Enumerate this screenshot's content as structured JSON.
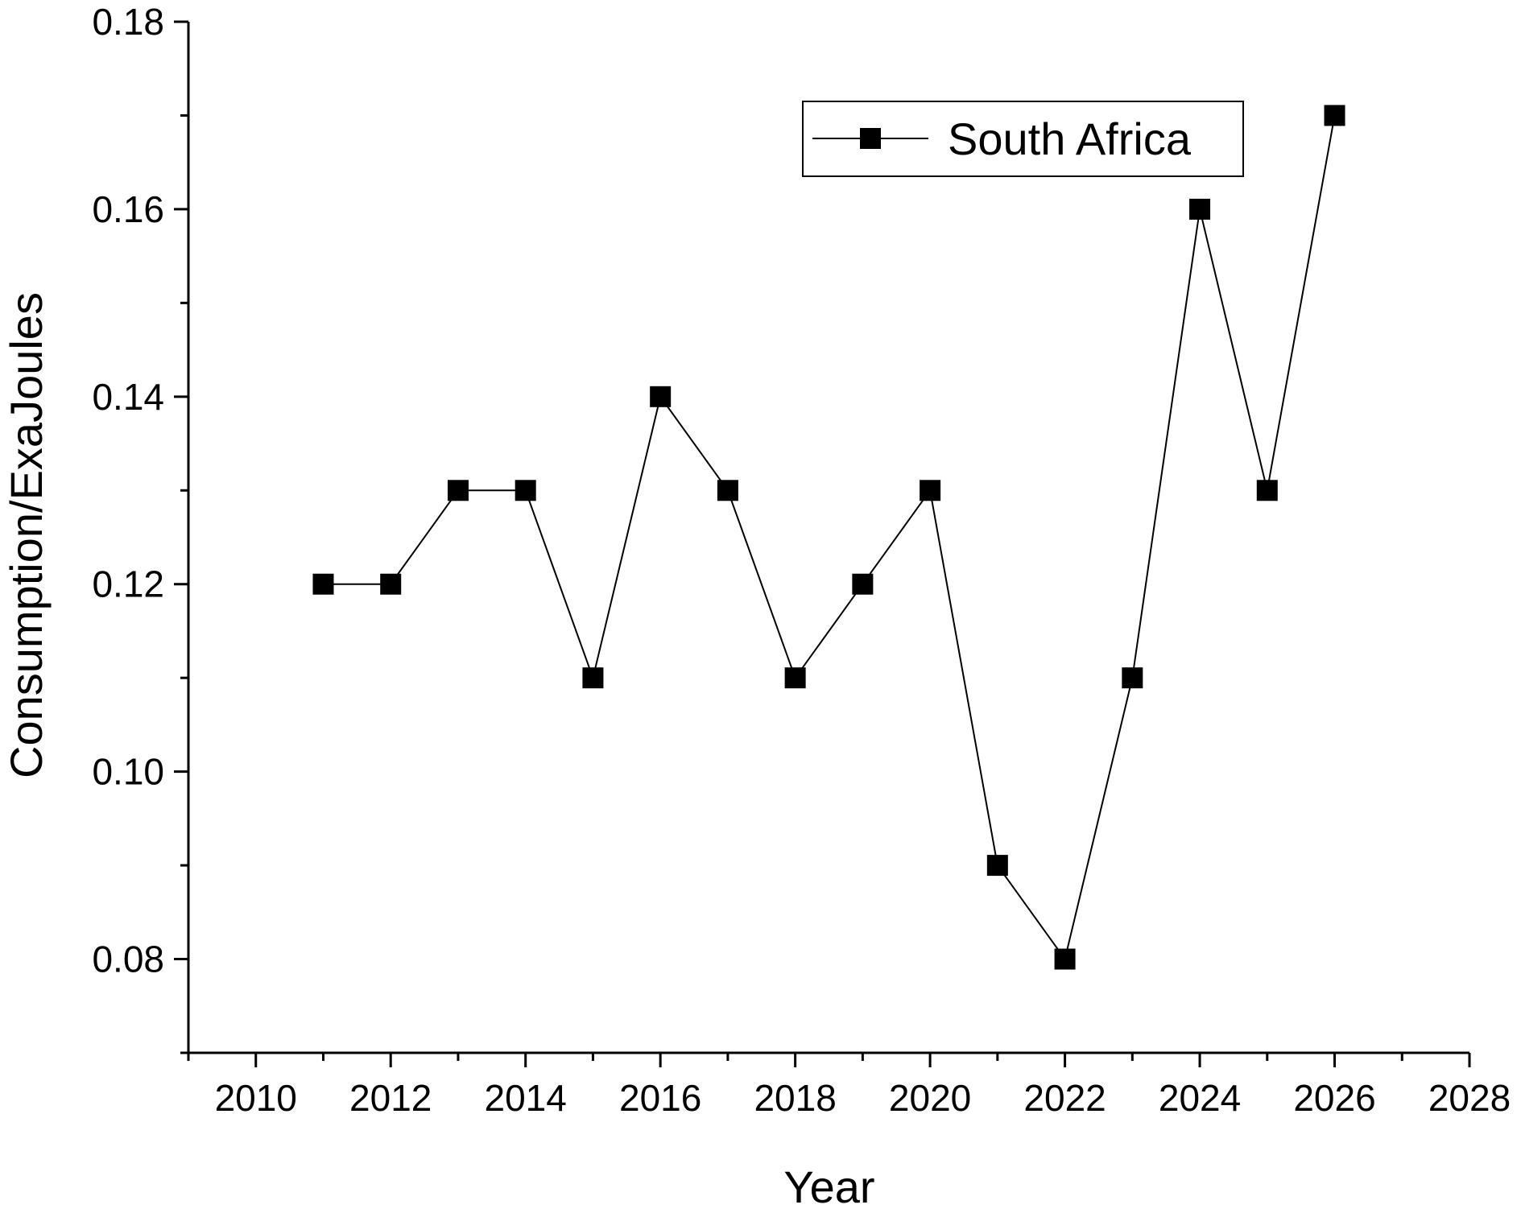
{
  "chart_data": {
    "type": "line",
    "title": "",
    "xlabel": "Year",
    "ylabel": "Consumption/ExaJoules",
    "xlim": [
      2009,
      2028
    ],
    "ylim": [
      0.07,
      0.18
    ],
    "x_ticks": [
      2010,
      2012,
      2014,
      2016,
      2018,
      2020,
      2022,
      2024,
      2026,
      2028
    ],
    "x_tick_labels": [
      "2010",
      "2012",
      "2014",
      "2016",
      "2018",
      "2020",
      "2022",
      "2024",
      "2026",
      "2028"
    ],
    "y_ticks": [
      0.08,
      0.1,
      0.12,
      0.14,
      0.16,
      0.18
    ],
    "y_tick_labels": [
      "0.08",
      "0.10",
      "0.12",
      "0.14",
      "0.16",
      "0.18"
    ],
    "grid": false,
    "legend_position": "top-right",
    "series": [
      {
        "name": "South Africa",
        "marker": "square",
        "color": "#000000",
        "x": [
          2011,
          2012,
          2013,
          2014,
          2015,
          2016,
          2017,
          2018,
          2019,
          2020,
          2021,
          2022,
          2023,
          2024,
          2025,
          2026
        ],
        "y": [
          0.12,
          0.12,
          0.13,
          0.13,
          0.11,
          0.14,
          0.13,
          0.11,
          0.12,
          0.13,
          0.09,
          0.08,
          0.11,
          0.16,
          0.13,
          0.17
        ]
      }
    ]
  }
}
